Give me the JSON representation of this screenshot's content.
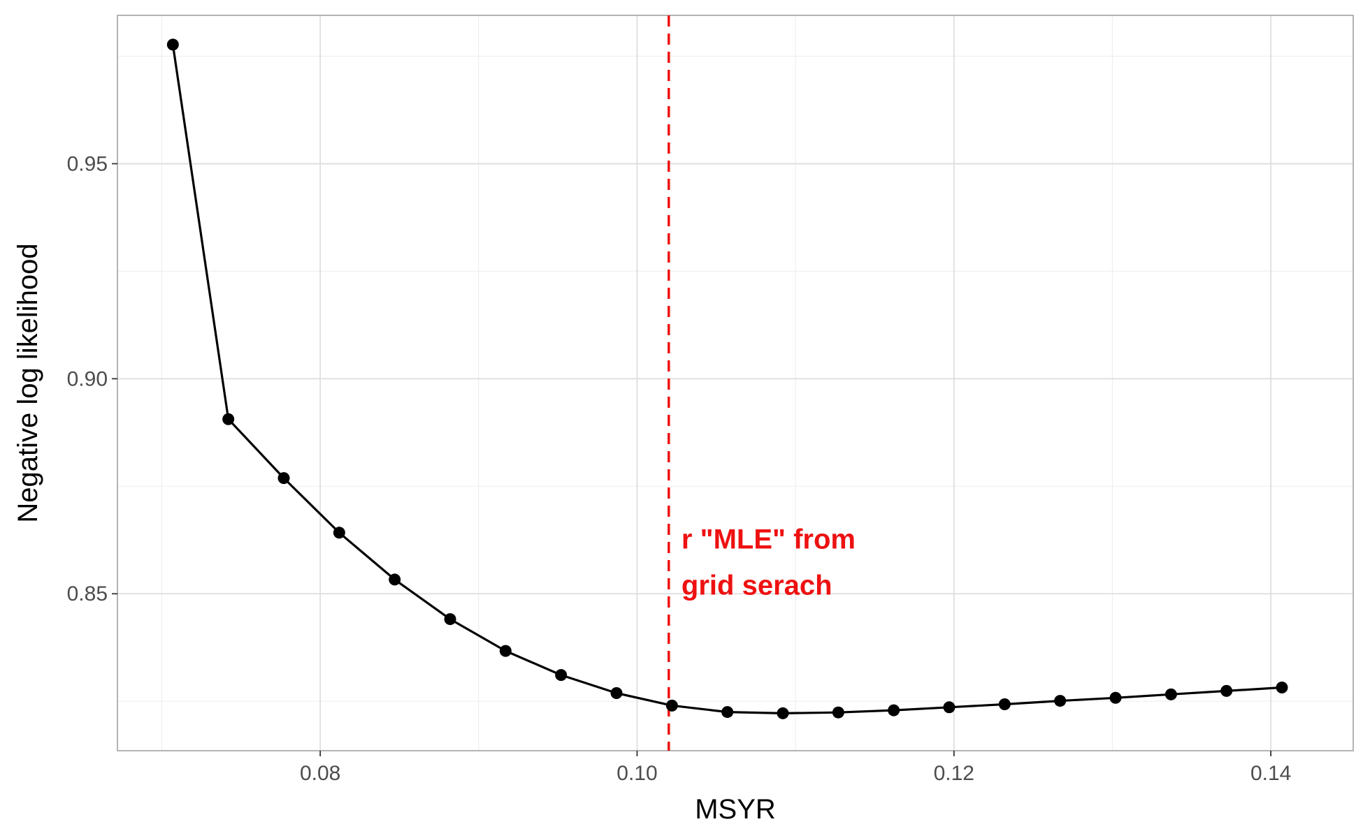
{
  "chart_data": {
    "type": "line",
    "title": "",
    "xlabel": "MSYR",
    "ylabel": "Negative log likelihood",
    "xlim": [
      0.0672,
      0.1452
    ],
    "ylim": [
      0.8135,
      0.9845
    ],
    "x_ticks": [
      0.08,
      0.1,
      0.12,
      0.14
    ],
    "x_tick_labels": [
      "0.08",
      "0.10",
      "0.12",
      "0.14"
    ],
    "y_ticks": [
      0.85,
      0.9,
      0.95
    ],
    "y_tick_labels": [
      "0.85",
      "0.90",
      "0.95"
    ],
    "x_minor_ticks": [
      0.07,
      0.09,
      0.11,
      0.13
    ],
    "y_minor_ticks": [
      0.825,
      0.875,
      0.925,
      0.975
    ],
    "grid": true,
    "series": [
      {
        "color": "#000000",
        "markers": true,
        "x": [
          0.0707,
          0.0742,
          0.0777,
          0.0812,
          0.0847,
          0.0882,
          0.0917,
          0.0952,
          0.0987,
          0.1022,
          0.1057,
          0.1092,
          0.1127,
          0.1162,
          0.1197,
          0.1232,
          0.1267,
          0.1302,
          0.1337,
          0.1372,
          0.1407
        ],
        "y": [
          0.9777,
          0.8906,
          0.8769,
          0.8642,
          0.8533,
          0.8441,
          0.8367,
          0.8311,
          0.8269,
          0.824,
          0.8225,
          0.8222,
          0.8224,
          0.8229,
          0.8236,
          0.8243,
          0.8251,
          0.8258,
          0.8266,
          0.8274,
          0.8282
        ]
      }
    ],
    "vline": {
      "x": 0.102,
      "color": "#ee1111",
      "style": "dashed"
    },
    "annotation": {
      "lines": [
        "r \"MLE\" from",
        "grid serach"
      ],
      "x": 0.1028,
      "y": 0.8605,
      "color": "#ee1111"
    },
    "colors": {
      "background": "#ffffff",
      "panel_border": "#b3b3b3",
      "grid_major": "#dedede",
      "grid_minor": "#efefef",
      "tick_text": "#4d4d4d"
    }
  }
}
